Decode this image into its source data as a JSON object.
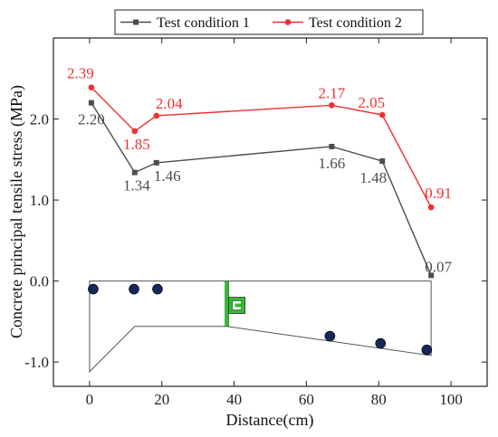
{
  "chart_data": {
    "type": "line",
    "title": "",
    "xlabel": "Distance(cm)",
    "ylabel": "Concrete principal tensile stress (MPa)",
    "xlim": [
      -10,
      110
    ],
    "ylim": [
      -1.3,
      3.0
    ],
    "xticks": [
      0,
      20,
      40,
      60,
      80,
      100
    ],
    "yticks": [
      -1.0,
      0.0,
      1.0,
      2.0
    ],
    "ytick_labels": [
      "-1.0",
      "0.0",
      "1.0",
      "2.0"
    ],
    "legend_position": "top-center",
    "grid": false,
    "series": [
      {
        "name": "Test condition 1",
        "color": "#4d4d4d",
        "marker": "square",
        "x": [
          0.5,
          12.5,
          18.5,
          67,
          81,
          94.5
        ],
        "y": [
          2.2,
          1.34,
          1.46,
          1.66,
          1.48,
          0.07
        ],
        "labels": [
          "2.20",
          "1.34",
          "1.46",
          "1.66",
          "1.48",
          "0.07"
        ]
      },
      {
        "name": "Test condition 2",
        "color": "#f03030",
        "marker": "circle",
        "x": [
          0.5,
          12.5,
          18.5,
          67,
          81,
          94.5
        ],
        "y": [
          2.39,
          1.85,
          2.04,
          2.17,
          2.05,
          0.91
        ],
        "labels": [
          "2.39",
          "1.85",
          "2.04",
          "2.17",
          "2.05",
          "0.91"
        ]
      }
    ],
    "inset": {
      "description_colors": {
        "outline": "#555555",
        "dots": "#14285a",
        "plate": "#2fbf2f"
      },
      "dots": [
        {
          "x": 1.0,
          "y": -0.1
        },
        {
          "x": 12.3,
          "y": -0.1
        },
        {
          "x": 18.8,
          "y": -0.1
        },
        {
          "x": 66.5,
          "y": -0.68
        },
        {
          "x": 80.5,
          "y": -0.77
        },
        {
          "x": 93.3,
          "y": -0.85
        }
      ]
    }
  }
}
